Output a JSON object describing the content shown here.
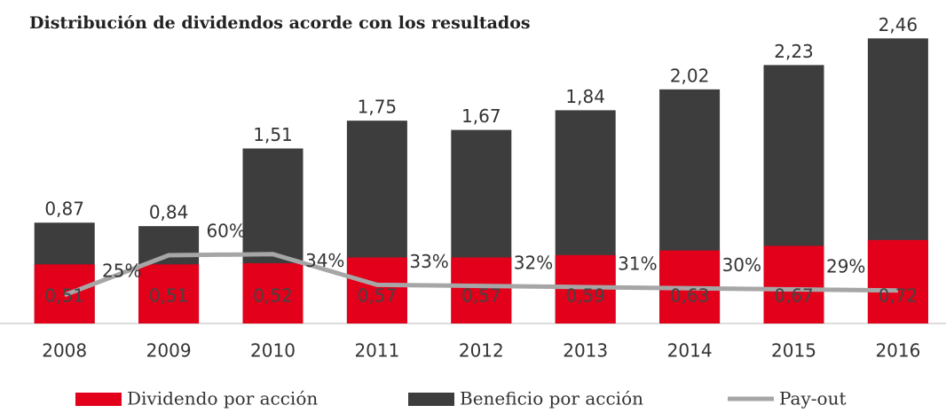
{
  "chart_data": {
    "type": "bar",
    "title": "Distribución de dividendos acorde con los resultados",
    "categories": [
      "2008",
      "2009",
      "2010",
      "2011",
      "2012",
      "2013",
      "2014",
      "2015",
      "2016"
    ],
    "series": [
      {
        "name": "Beneficio por acción",
        "color": "#3d3d3d",
        "values": [
          0.87,
          0.84,
          1.51,
          1.75,
          1.67,
          1.84,
          2.02,
          2.23,
          2.46
        ],
        "value_labels": [
          "0,87",
          "0,84",
          "1,51",
          "1,75",
          "1,67",
          "1,84",
          "2,02",
          "2,23",
          "2,46"
        ]
      },
      {
        "name": "Dividendo por acción",
        "color": "#e2001a",
        "values": [
          0.51,
          0.51,
          0.52,
          0.57,
          0.57,
          0.59,
          0.63,
          0.67,
          0.72
        ],
        "value_labels": [
          "0,51",
          "0,51",
          "0,52",
          "0,57",
          "0,57",
          "0,59",
          "0,63",
          "0,67",
          "0,72"
        ]
      },
      {
        "name": "Pay-out",
        "color": "#a6a6a6",
        "axis": "y2",
        "values": [
          25,
          60,
          61,
          34,
          33,
          32,
          31,
          30,
          29
        ],
        "value_labels": [
          "25%",
          "60%",
          null,
          "34%",
          "33%",
          "32%",
          "31%",
          "30%",
          "29%"
        ]
      }
    ],
    "ylim": [
      0,
      2.6
    ],
    "y2lim": [
      0,
      265
    ]
  }
}
